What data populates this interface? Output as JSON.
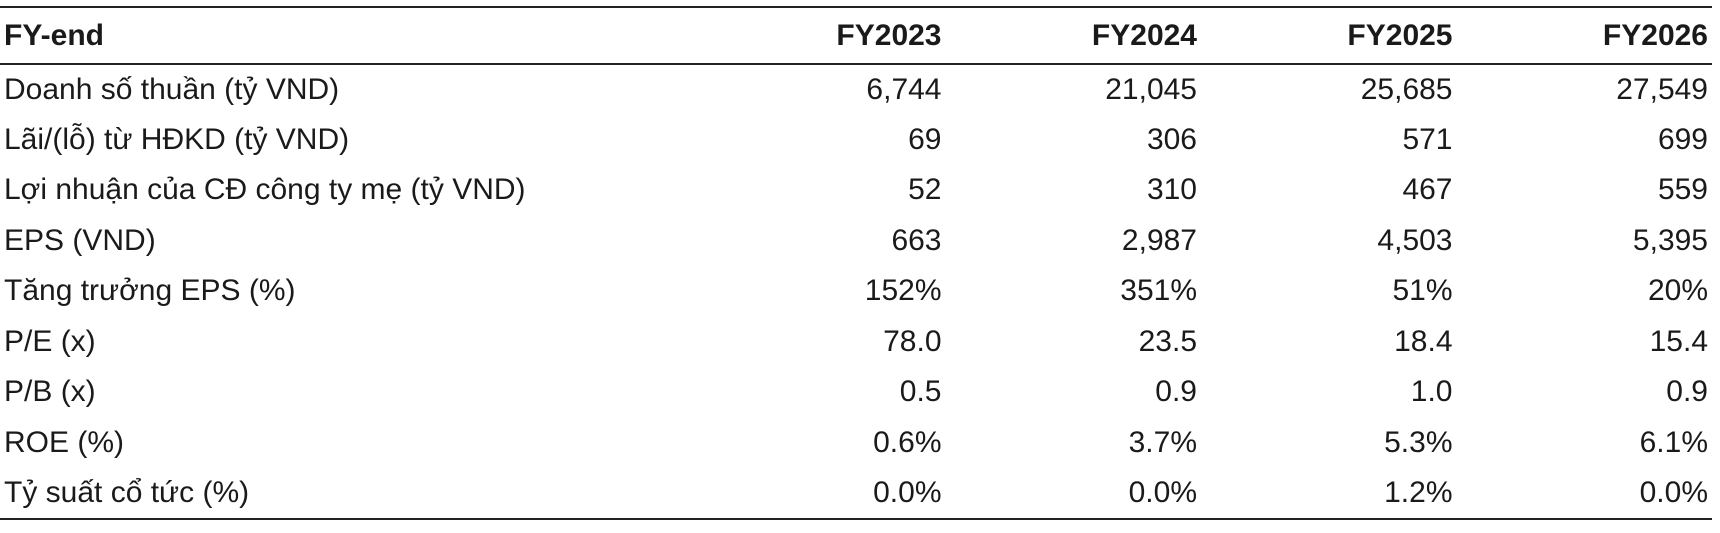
{
  "table": {
    "header": {
      "label": "FY-end",
      "years": [
        "FY2023",
        "FY2024",
        "FY2025",
        "FY2026"
      ]
    },
    "rows": [
      {
        "label": "Doanh số thuần (tỷ VND)",
        "values": [
          "6,744",
          "21,045",
          "25,685",
          "27,549"
        ]
      },
      {
        "label": "Lãi/(lỗ) từ HĐKD (tỷ VND)",
        "values": [
          "69",
          "306",
          "571",
          "699"
        ]
      },
      {
        "label": "Lợi nhuận của CĐ công ty mẹ  (tỷ VND)",
        "values": [
          "52",
          "310",
          "467",
          "559"
        ]
      },
      {
        "label": "EPS (VND)",
        "values": [
          "663",
          "2,987",
          "4,503",
          "5,395"
        ]
      },
      {
        "label": "Tăng trưởng EPS (%)",
        "values": [
          "152%",
          "351%",
          "51%",
          "20%"
        ]
      },
      {
        "label": "P/E (x)",
        "values": [
          "78.0",
          "23.5",
          "18.4",
          "15.4"
        ]
      },
      {
        "label": "P/B (x)",
        "values": [
          "0.5",
          "0.9",
          "1.0",
          "0.9"
        ]
      },
      {
        "label": "ROE (%)",
        "values": [
          "0.6%",
          "3.7%",
          "5.3%",
          "6.1%"
        ]
      },
      {
        "label": "Tỷ suất cổ tức (%)",
        "values": [
          "0.0%",
          "0.0%",
          "1.2%",
          "0.0%"
        ]
      }
    ]
  }
}
